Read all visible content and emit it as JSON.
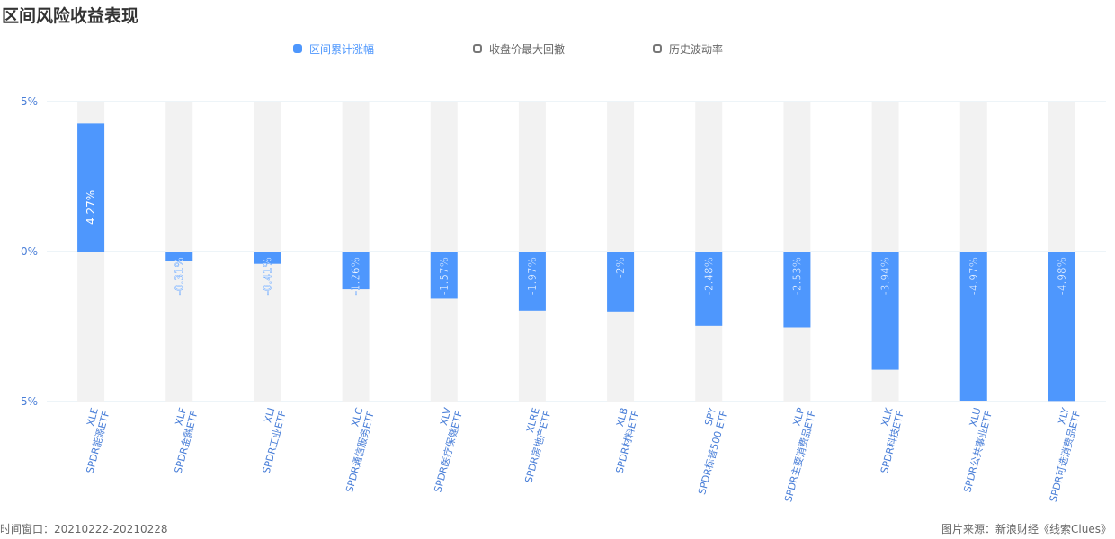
{
  "title": "区间风险收益表现",
  "legend": [
    {
      "label": "区间累计涨幅",
      "active": true
    },
    {
      "label": "收盘价最大回撤",
      "active": false
    },
    {
      "label": "历史波动率",
      "active": false
    }
  ],
  "footer": {
    "window": "时间窗口：20210222-20210228",
    "source": "图片来源：新浪财经《线索Clues》"
  },
  "colors": {
    "bar": "#4e97fd",
    "background_bar": "#f2f2f2",
    "grid": "#dbe8f0",
    "tick": "#4a7fd8"
  },
  "chart_data": {
    "type": "bar",
    "series": [
      {
        "name": "区间累计涨幅",
        "values": [
          4.27,
          -0.31,
          -0.41,
          -1.26,
          -1.57,
          -1.97,
          -2.0,
          -2.48,
          -2.53,
          -3.94,
          -4.97,
          -4.98
        ]
      }
    ],
    "categories": [
      {
        "code": "XLE",
        "name": "SPDR能源ETF",
        "label": "4.27%"
      },
      {
        "code": "XLF",
        "name": "SPDR金融ETF",
        "label": "-0.31%"
      },
      {
        "code": "XLI",
        "name": "SPDR工业ETF",
        "label": "-0.41%"
      },
      {
        "code": "XLC",
        "name": "SPDR通信服务ETF",
        "label": "-1.26%"
      },
      {
        "code": "XLV",
        "name": "SPDR医疗保健ETF",
        "label": "-1.57%"
      },
      {
        "code": "XLRE",
        "name": "SPDR房地产ETF",
        "label": "-1.97%"
      },
      {
        "code": "XLB",
        "name": "SPDR材料ETF",
        "label": "-2%"
      },
      {
        "code": "SPY",
        "name": "SPDR标普500 ETF",
        "label": "-2.48%"
      },
      {
        "code": "XLP",
        "name": "SPDR主要消费品ETF",
        "label": "-2.53%"
      },
      {
        "code": "XLK",
        "name": "SPDR科技ETF",
        "label": "-3.94%"
      },
      {
        "code": "XLU",
        "name": "SPDR公共事业ETF",
        "label": "-4.97%"
      },
      {
        "code": "XLY",
        "name": "SPDR可选消费品ETF",
        "label": "-4.98%"
      }
    ],
    "yticks": [
      {
        "value": 5,
        "label": "5%"
      },
      {
        "value": 0,
        "label": "0%"
      },
      {
        "value": -5,
        "label": "-5%"
      }
    ],
    "ylim": [
      -5,
      5
    ],
    "grid": true,
    "legend_position": "top"
  }
}
